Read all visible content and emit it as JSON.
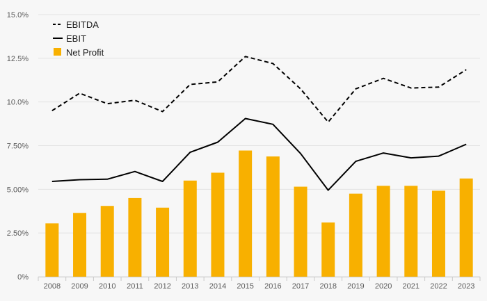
{
  "chart_data": {
    "type": "bar",
    "title": "",
    "xlabel": "",
    "ylabel": "",
    "categories": [
      "2008",
      "2009",
      "2010",
      "2011",
      "2012",
      "2013",
      "2014",
      "2015",
      "2016",
      "2017",
      "2018",
      "2019",
      "2020",
      "2021",
      "2022",
      "2023"
    ],
    "ylim": [
      0,
      15
    ],
    "yticks": [
      0,
      2.5,
      5,
      7.5,
      10,
      12.5,
      15
    ],
    "ytick_labels": [
      "0%",
      "2.50%",
      "5.00%",
      "7.50%",
      "10.0%",
      "12.5%",
      "15.0%"
    ],
    "grid": "horizontal",
    "legend_position": "top-left",
    "series": [
      {
        "name": "EBITDA",
        "type": "line",
        "style": "dashed",
        "color": "#000000",
        "values": [
          9.5,
          10.5,
          9.9,
          10.1,
          9.45,
          11.0,
          11.15,
          12.6,
          12.2,
          10.75,
          8.85,
          10.75,
          11.35,
          10.8,
          10.85,
          11.85
        ]
      },
      {
        "name": "EBIT",
        "type": "line",
        "style": "solid",
        "color": "#000000",
        "values": [
          5.45,
          5.55,
          5.58,
          6.02,
          5.45,
          7.12,
          7.7,
          9.05,
          8.72,
          7.05,
          4.95,
          6.6,
          7.08,
          6.8,
          6.9,
          7.58
        ]
      },
      {
        "name": "Net Profit",
        "type": "bar",
        "color": "#f8b000",
        "values": [
          3.05,
          3.65,
          4.05,
          4.5,
          3.95,
          5.5,
          5.95,
          7.22,
          6.88,
          5.15,
          3.1,
          4.75,
          5.2,
          5.2,
          4.92,
          5.62
        ]
      }
    ]
  }
}
